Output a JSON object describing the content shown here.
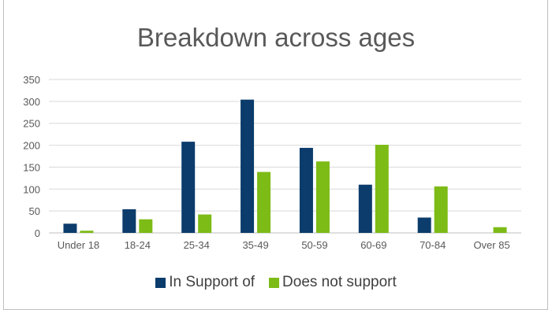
{
  "chart_data": {
    "type": "bar",
    "title": "Breakdown across ages",
    "xlabel": "",
    "ylabel": "",
    "categories": [
      "Under 18",
      "18-24",
      "25-34",
      "35-49",
      "50-59",
      "60-69",
      "70-84",
      "Over 85"
    ],
    "series": [
      {
        "name": "In Support of",
        "color": "#0b3c6b",
        "values": [
          21,
          54,
          208,
          304,
          194,
          110,
          35,
          0
        ]
      },
      {
        "name": "Does not support",
        "color": "#7dbb16",
        "values": [
          5,
          31,
          42,
          139,
          163,
          201,
          106,
          13
        ]
      }
    ],
    "ylim": [
      0,
      350
    ],
    "yticks": [
      0,
      50,
      100,
      150,
      200,
      250,
      300,
      350
    ],
    "grid": true,
    "legend_position": "bottom"
  }
}
